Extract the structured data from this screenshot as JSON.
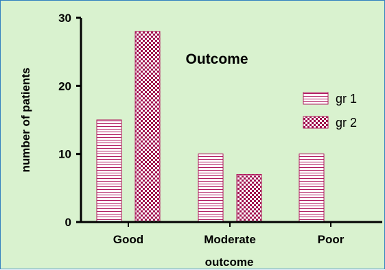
{
  "chart_data": {
    "type": "bar",
    "title": "Outcome",
    "xlabel": "outcome",
    "ylabel": "number of patients",
    "categories": [
      "Good",
      "Moderate",
      "Poor"
    ],
    "series": [
      {
        "name": "gr 1",
        "values": [
          15,
          10,
          10
        ],
        "pattern": "horizontal-stripes",
        "color": "#b0185e"
      },
      {
        "name": "gr 2",
        "values": [
          28,
          7,
          0
        ],
        "pattern": "checkerboard",
        "color": "#b0185e"
      }
    ],
    "ylim": [
      0,
      30
    ],
    "yticks": [
      0,
      10,
      20,
      30
    ],
    "grid": false,
    "legend_position": "right"
  }
}
